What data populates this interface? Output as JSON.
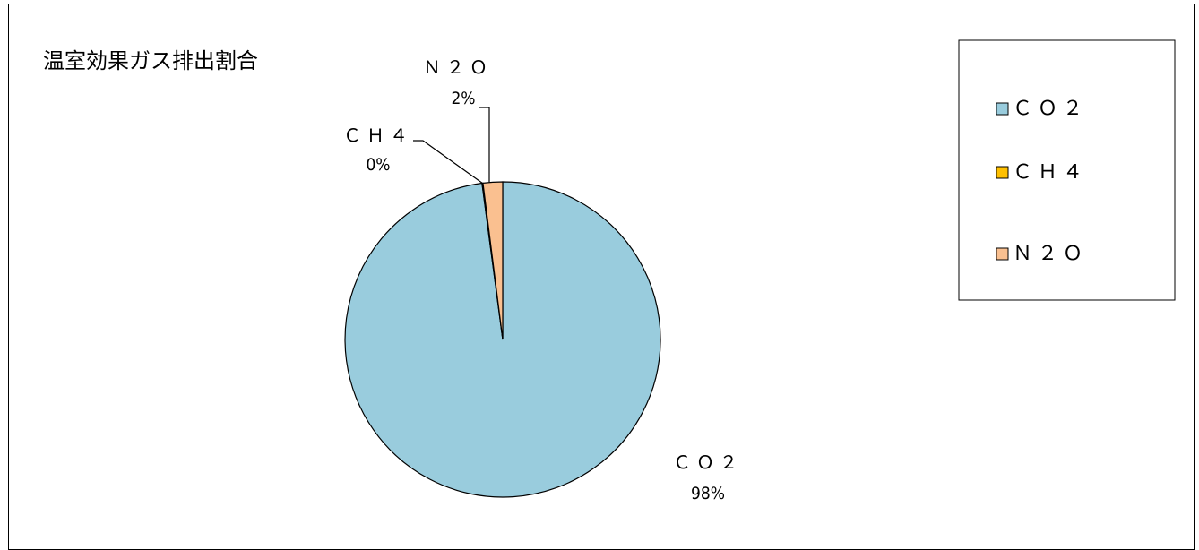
{
  "chart_data": {
    "type": "pie",
    "title": "温室効果ガス排出割合",
    "categories": [
      "ＣＯ２",
      "ＣＨ４",
      "Ｎ２Ｏ"
    ],
    "values": [
      98,
      0.1,
      2
    ],
    "data_labels": [
      "98%",
      "0%",
      "2%"
    ],
    "colors": [
      "#99CCDD",
      "#FFC000",
      "#FAC090"
    ],
    "legend": {
      "position": "right",
      "entries": [
        "ＣＯ２",
        "ＣＨ４",
        "Ｎ２Ｏ"
      ]
    },
    "start_angle_deg": 0,
    "direction": "clockwise"
  }
}
